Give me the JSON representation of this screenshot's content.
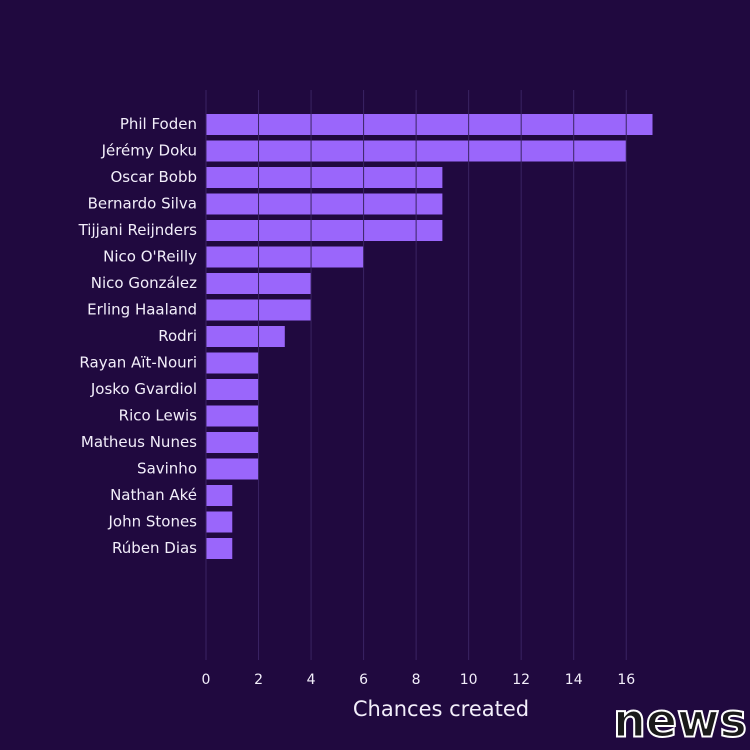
{
  "chart_data": {
    "type": "bar",
    "orientation": "horizontal",
    "categories": [
      "Phil Foden",
      "Jérémy Doku",
      "Oscar Bobb",
      "Bernardo Silva",
      "Tijjani Reijnders",
      "Nico O'Reilly",
      "Nico González",
      "Erling Haaland",
      "Rodri",
      "Rayan Aït-Nouri",
      "Josko Gvardiol",
      "Rico Lewis",
      "Matheus Nunes",
      "Savinho",
      "Nathan Aké",
      "John Stones",
      "Rúben Dias"
    ],
    "values": [
      17,
      16,
      9,
      9,
      9,
      6,
      4,
      4,
      3,
      2,
      2,
      2,
      2,
      2,
      1,
      1,
      1
    ],
    "color": "#9a66fb",
    "xlabel": "Chances created",
    "xlim": [
      0,
      17
    ],
    "xticks": [
      0,
      2,
      4,
      6,
      8,
      10,
      12,
      14,
      16
    ],
    "grid": true
  },
  "watermark": "news"
}
